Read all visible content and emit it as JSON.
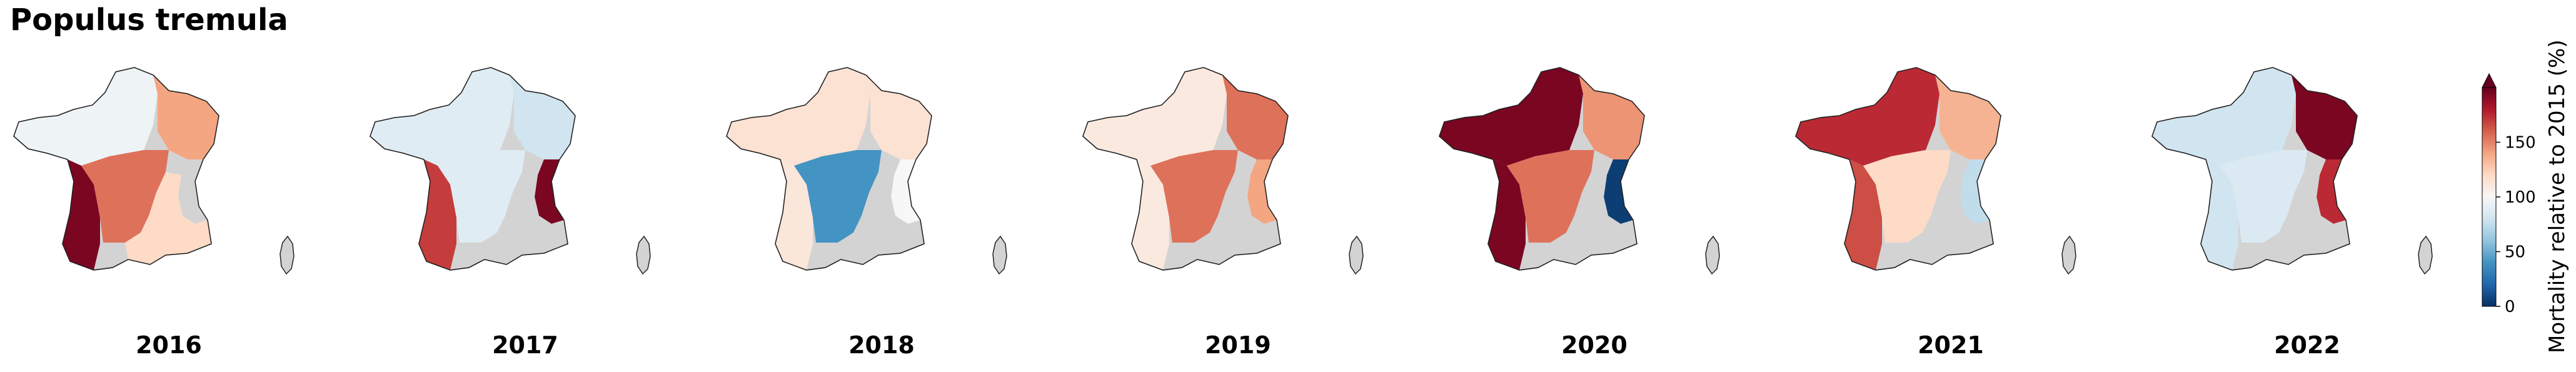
{
  "title": "Populus tremula",
  "colorbar": {
    "label": "Mortality relative to 2015 (%)",
    "ticks": [
      "0",
      "50",
      "100",
      "150"
    ],
    "tick_values": [
      0,
      50,
      100,
      150
    ],
    "range": [
      0,
      200
    ],
    "extend": "max",
    "colormap": [
      "#053061",
      "#2166ac",
      "#4393c3",
      "#92c5de",
      "#d1e5f0",
      "#f7f7f7",
      "#fddbc7",
      "#f4a582",
      "#d6604d",
      "#b2182b",
      "#67001f"
    ]
  },
  "no_data_color": "#d3d3d3",
  "regions": [
    "west",
    "south_west",
    "north_east",
    "central",
    "east_alps",
    "south_east"
  ],
  "maps": [
    {
      "year": "2016",
      "values": {
        "west": 95,
        "south_west": 195,
        "north_east": 140,
        "central": 155,
        "east_alps": null,
        "south_east": 120
      }
    },
    {
      "year": "2017",
      "values": {
        "west": 88,
        "south_west": 170,
        "north_east": 80,
        "central": 88,
        "east_alps": 195,
        "south_east": null
      }
    },
    {
      "year": "2018",
      "values": {
        "west": 115,
        "south_west": 112,
        "north_east": 115,
        "central": 40,
        "east_alps": 100,
        "south_east": null
      }
    },
    {
      "year": "2019",
      "values": {
        "west": 110,
        "south_west": 110,
        "north_east": 155,
        "central": 155,
        "east_alps": 140,
        "south_east": null
      }
    },
    {
      "year": "2020",
      "values": {
        "west": 195,
        "south_west": 195,
        "north_east": 145,
        "central": 155,
        "east_alps": 5,
        "south_east": null
      }
    },
    {
      "year": "2021",
      "values": {
        "west": 175,
        "south_west": 165,
        "north_east": 135,
        "central": 120,
        "east_alps": 75,
        "south_east": null
      }
    },
    {
      "year": "2022",
      "values": {
        "west": 80,
        "south_west": 80,
        "north_east": 195,
        "central": 85,
        "east_alps": 175,
        "south_east": null
      }
    }
  ]
}
